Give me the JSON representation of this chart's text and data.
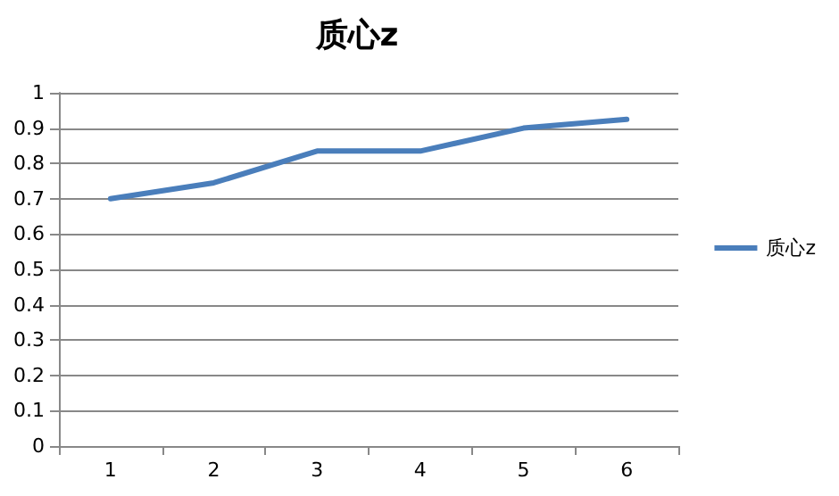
{
  "chart_data": {
    "type": "line",
    "title": "质心z",
    "categories": [
      "1",
      "2",
      "3",
      "4",
      "5",
      "6"
    ],
    "series": [
      {
        "name": "质心z",
        "color": "#4a7ebb",
        "values": [
          0.7,
          0.745,
          0.835,
          0.835,
          0.9,
          0.925
        ]
      }
    ],
    "ylim": [
      0,
      1
    ],
    "yticks": [
      0,
      0.1,
      0.2,
      0.3,
      0.4,
      0.5,
      0.6,
      0.7,
      0.8,
      0.9,
      1
    ],
    "grid": "y",
    "legend": "right",
    "marker": "none",
    "line_style": "solid"
  }
}
